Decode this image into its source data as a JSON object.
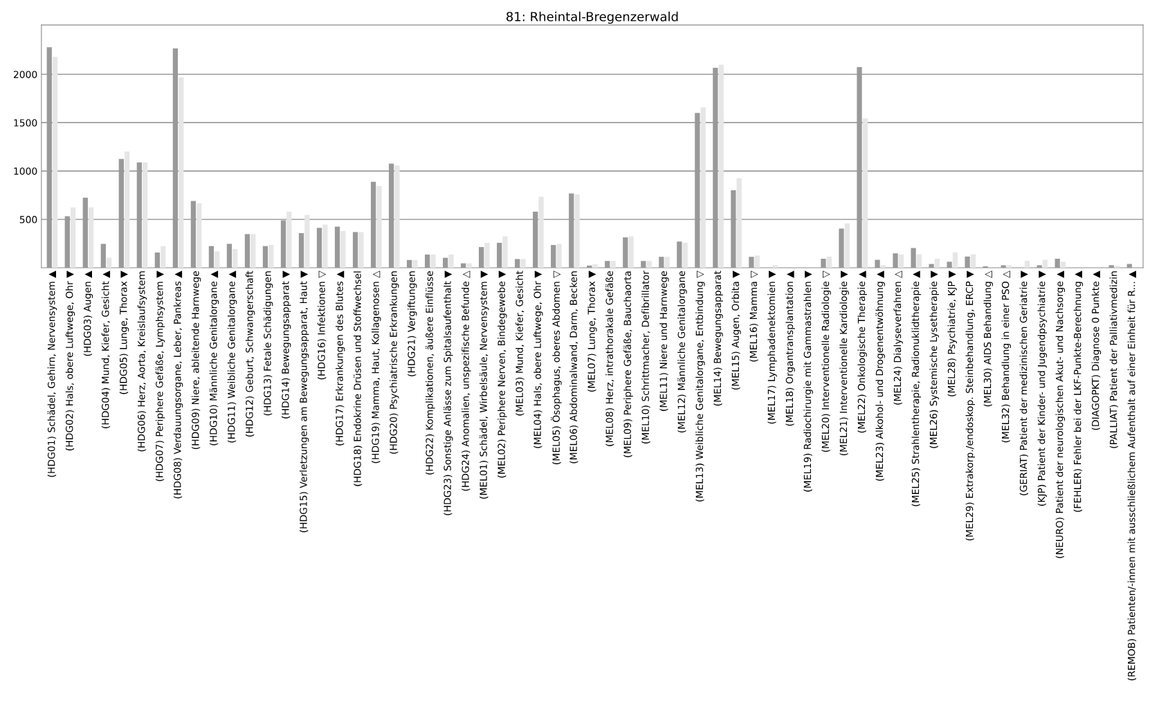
{
  "chart_data": {
    "type": "bar",
    "title": "81: Rheintal-Bregenzerwald",
    "categories": [
      "(HDG01) Schädel, Gehirn, Nervensystem ▲",
      "(HDG02) Hals, obere Luftwege, Ohr ▼",
      "(HDG03) Augen ▲",
      "(HDG04) Mund, Kiefer, Gesicht ▲",
      "(HDG05) Lunge, Thorax ▼",
      "(HDG06) Herz, Aorta, Kreislaufsystem",
      "(HDG07) Periphere Gefäße, Lymphsystem ▼",
      "(HDG08) Verdauungsorgane, Leber, Pankreas ▲",
      "(HDG09) Niere, ableitende Harnwege",
      "(HDG10) Männliche Genitalorgane ▲",
      "(HDG11) Weibliche Genitalorgane ▲",
      "(HDG12) Geburt, Schwangerschaft",
      "(HDG13) Fetale Schädigungen",
      "(HDG14) Bewegungsapparat ▼",
      "(HDG15) Verletzungen am Bewegungsapparat, Haut ▼",
      "(HDG16) Infektionen ▽",
      "(HDG17) Erkrankungen des Blutes ▲",
      "(HDG18) Endokrine Drüsen und Stoffwechsel",
      "(HDG19) Mamma, Haut, Kollagenosen △",
      "(HDG20) Psychiatrische Erkrankungen",
      "(HDG21) Vergiftungen",
      "(HDG22) Komplikationen, äußere Einflüsse",
      "(HDG23) Sonstige Anlässe zum Spitalsaufenthalt ▼",
      "(HDG24) Anomalien, unspezifische Befunde △",
      "(MEL01) Schädel, Wirbelsäule, Nervensystem ▼",
      "(MEL02) Periphere Nerven, Bindegewebe ▼",
      "(MEL03) Mund, Kiefer, Gesicht",
      "(MEL04) Hals, obere Luftwege, Ohr ▼",
      "(MEL05) Ösophagus, oberes Abdomen ▽",
      "(MEL06) Abdominalwand, Darm, Becken",
      "(MEL07) Lunge, Thorax ▼",
      "(MEL08) Herz, intrathorakale Gefäße",
      "(MEL09) Periphere Gefäße, Bauchaorta",
      "(MEL10) Schrittmacher, Defibrillator",
      "(MEL11) Niere und Harnwege",
      "(MEL12) Männliche Genitalorgane",
      "(MEL13) Weibliche Genitalorgane, Entbindung ▽",
      "(MEL14) Bewegungsapparat",
      "(MEL15) Augen, Orbita ▼",
      "(MEL16) Mamma ▽",
      "(MEL17) Lymphadenektomien ▼",
      "(MEL18) Organtransplantation ▲",
      "(MEL19) Radiochirurgie mit Gammastrahlen ▼",
      "(MEL20) Interventionelle Radiologie ▽",
      "(MEL21) Interventionelle Kardiologie ▼",
      "(MEL22) Onkologische Therapie ▲",
      "(MEL23) Alkohol- und Drogenentwöhnung ▲",
      "(MEL24) Dialyseverfahren △",
      "(MEL25) Strahlentherapie, Radionuklidtherapie ▲",
      "(MEL26) Systemische Lysetherapie ▼",
      "(MEL28) Psychiatrie, KJP ▼",
      "(MEL29) Extrakorp./endoskop. Steinbehandlung, ERCP ▼",
      "(MEL30) AIDS Behandlung △",
      "(MEL32) Behandlung in einer PSO △",
      "(GERIAT) Patient der medizinischen Geriatrie ▼",
      "(KJP) Patient der Kinder- und Jugendpsychiatrie ▼",
      "(NEURO) Patient der neurologischen Akut- und Nachsorge ▲",
      "(FEHLER) Fehler bei der LKF-Punkte-Berechnung ▲",
      "(DIAGOPKT) Diagnose 0 Punkte ▲",
      "(PALLIAT) Patient der Palliativmedizin",
      "(REMOB) Patienten/-innen mit ausschließlichem Aufenthalt auf einer Einheit für R... ▲"
    ],
    "series": [
      {
        "color": "#999999",
        "values": [
          2281,
          533,
          724,
          247,
          1124,
          1090,
          157,
          2268,
          691,
          224,
          247,
          348,
          224,
          490,
          358,
          412,
          425,
          369,
          889,
          1077,
          80,
          137,
          103,
          46,
          214,
          258,
          90,
          580,
          235,
          768,
          23,
          70,
          314,
          70,
          113,
          271,
          1600,
          2067,
          801,
          113,
          0,
          0,
          0,
          93,
          405,
          2074,
          82,
          149,
          204,
          39,
          62,
          116,
          15,
          26,
          0,
          26,
          93,
          0,
          0,
          26,
          39
        ]
      },
      {
        "color": "#e6e6e6",
        "values": [
          2180,
          624,
          624,
          103,
          1201,
          1090,
          224,
          1969,
          667,
          170,
          193,
          348,
          237,
          580,
          546,
          446,
          379,
          369,
          845,
          1057,
          80,
          137,
          137,
          46,
          258,
          325,
          90,
          734,
          247,
          758,
          36,
          70,
          325,
          70,
          113,
          258,
          1657,
          2100,
          925,
          126,
          26,
          0,
          0,
          116,
          459,
          1544,
          26,
          139,
          139,
          93,
          160,
          139,
          0,
          26,
          72,
          82,
          62,
          0,
          0,
          21,
          0
        ]
      }
    ],
    "ylim": [
      0,
      2510
    ],
    "yticks": [
      500,
      1000,
      1500,
      2000
    ],
    "grid": "y"
  }
}
